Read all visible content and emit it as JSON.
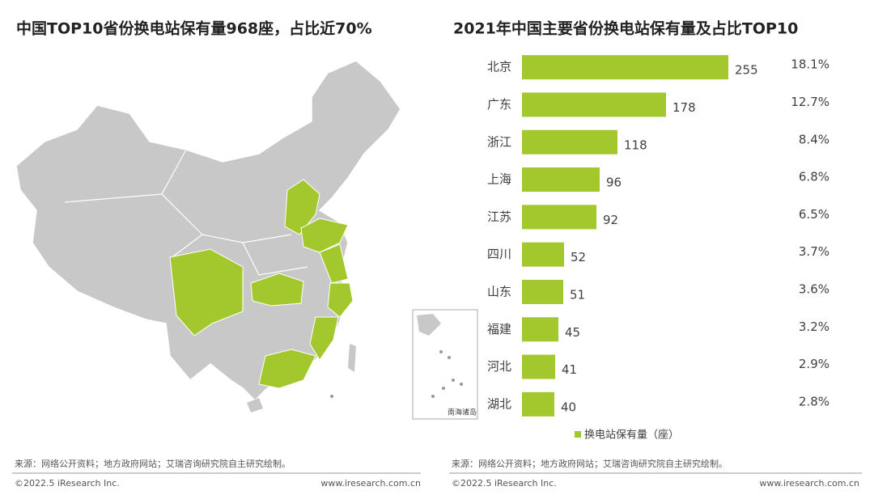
{
  "left_panel": {
    "title": "中国TOP10省份换电站保有量968座，占比近70%",
    "map_inset_label": "南海诸岛",
    "source": "来源：网络公开资料；地方政府网站；艾瑞咨询研究院自主研究绘制。",
    "copyright": "©2022.5 iResearch Inc.",
    "website": "www.iresearch.com.cn"
  },
  "chart_data": {
    "type": "bar",
    "orientation": "horizontal",
    "title": "2021年中国主要省份换电站保有量及占比TOP10",
    "categories": [
      "北京",
      "广东",
      "浙江",
      "上海",
      "江苏",
      "四川",
      "山东",
      "福建",
      "河北",
      "湖北"
    ],
    "series": [
      {
        "name": "换电站保有量（座）",
        "color": "#a2c82e",
        "values": [
          255,
          178,
          118,
          96,
          92,
          52,
          51,
          45,
          41,
          40
        ]
      }
    ],
    "shares": {
      "values": [
        18.1,
        12.7,
        8.4,
        6.8,
        6.5,
        3.7,
        3.6,
        3.2,
        2.9,
        2.8
      ],
      "value_labels": [
        "18.1%",
        "12.7%",
        "8.4%",
        "6.8%",
        "6.5%",
        "3.7%",
        "3.6%",
        "3.2%",
        "2.9%",
        "2.8%"
      ]
    },
    "xlim": [
      0,
      300
    ],
    "legend": "bottom",
    "source": "来源：网络公开资料；地方政府网站；艾瑞咨询研究院自主研究绘制。",
    "copyright": "©2022.5 iResearch Inc.",
    "website": "www.iresearch.com.cn"
  }
}
